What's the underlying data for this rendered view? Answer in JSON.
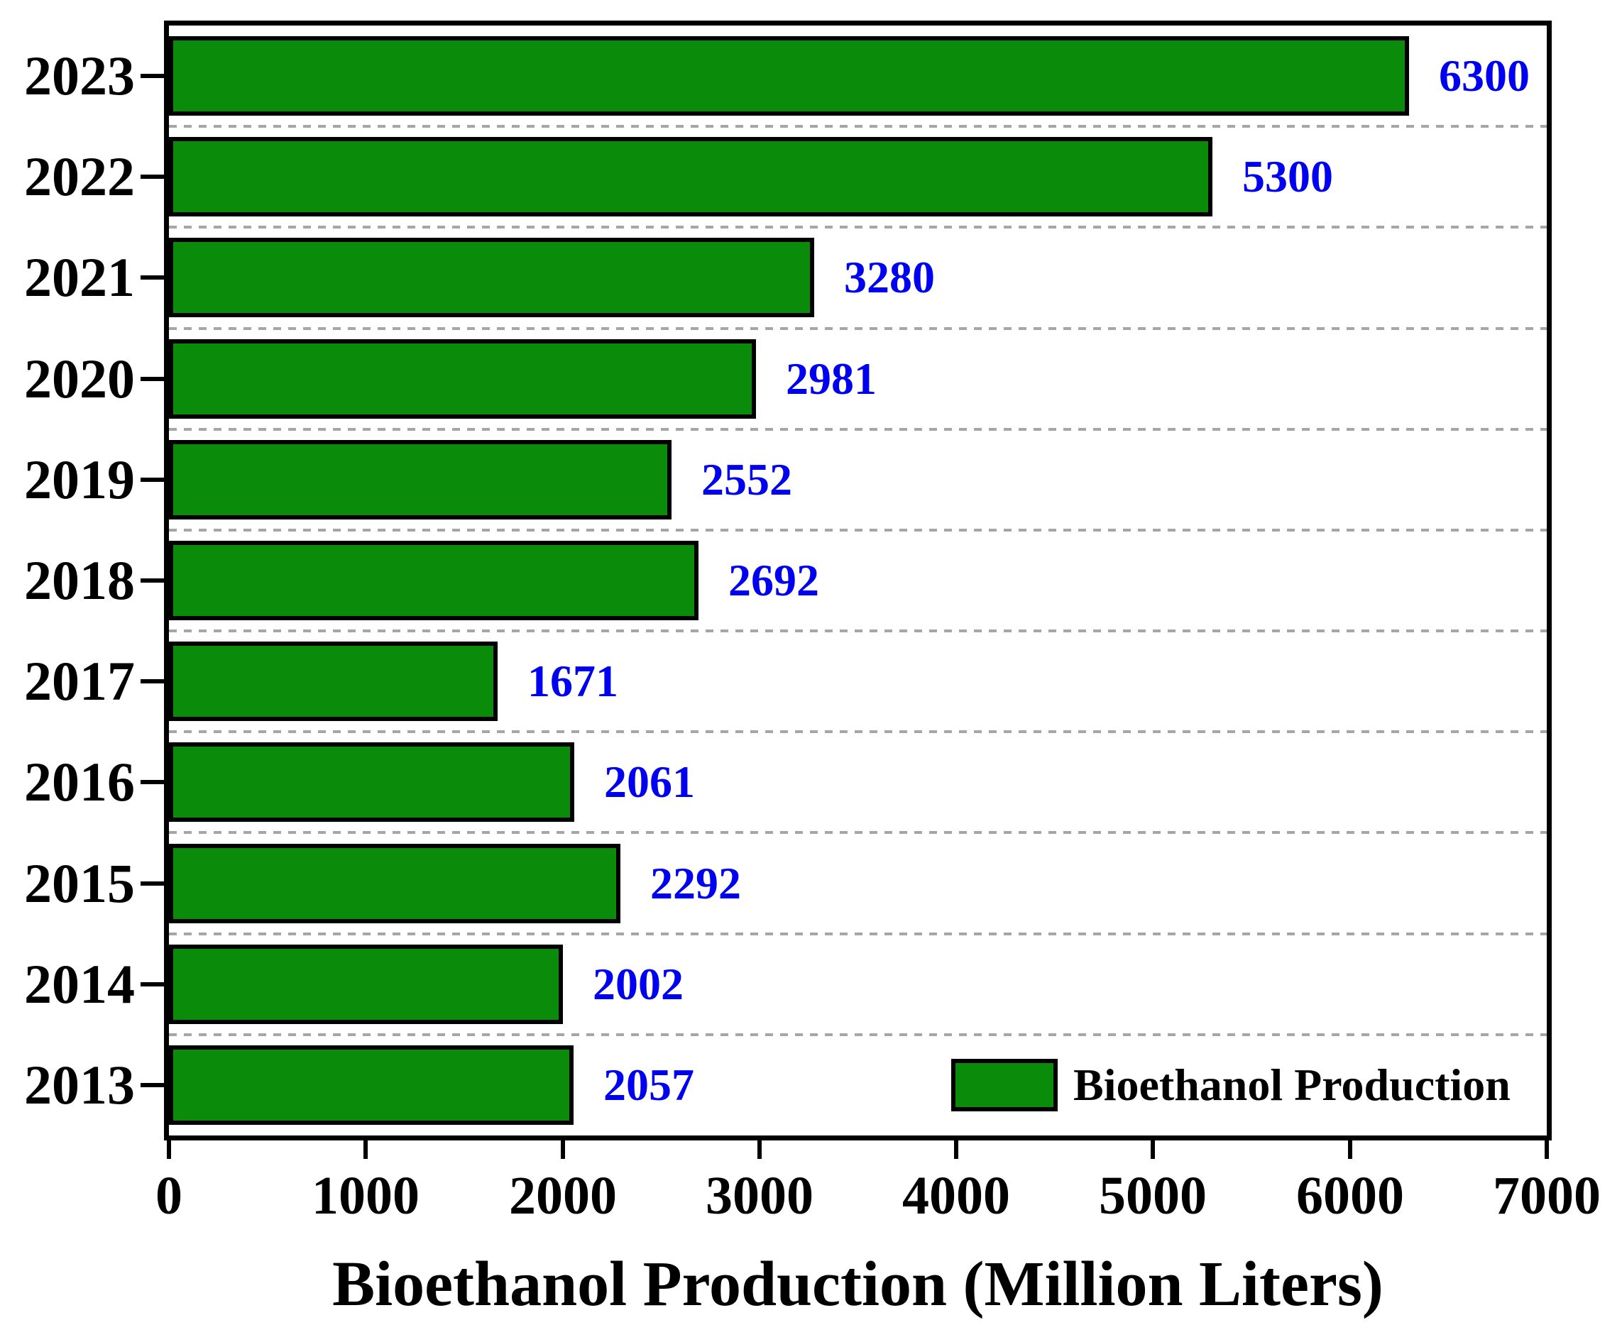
{
  "chart_data": {
    "type": "bar",
    "orientation": "horizontal",
    "title": "",
    "xlabel": "Bioethanol Production (Million Liters)",
    "ylabel": "",
    "categories": [
      "2023",
      "2022",
      "2021",
      "2020",
      "2019",
      "2018",
      "2017",
      "2016",
      "2015",
      "2014",
      "2013"
    ],
    "values": [
      6300,
      5300,
      3280,
      2981,
      2552,
      2692,
      1671,
      2061,
      2292,
      2002,
      2057
    ],
    "value_labels": [
      "6300",
      "5300",
      "3280",
      "2981",
      "2552",
      "2692",
      "1671",
      "2061",
      "2292",
      "2002",
      "2057"
    ],
    "series_name": "Bioethanol Production",
    "xlim": [
      0,
      7000
    ],
    "xticks": [
      0,
      1000,
      2000,
      3000,
      4000,
      5000,
      6000,
      7000
    ],
    "xtick_labels": [
      "0",
      "1000",
      "2000",
      "3000",
      "4000",
      "5000",
      "6000",
      "7000"
    ],
    "grid": "dashed horizontal lines between category slots",
    "legend": {
      "label": "Bioethanol Production",
      "position": "bottom-right inside plot",
      "swatch": "green-rectangle"
    },
    "colors": {
      "bar_fill": "#0a8c0a",
      "bar_border": "#000000",
      "value_label": "#0000f0",
      "axis_and_text": "#000000",
      "gridline": "#a6a6a6",
      "background": "#ffffff"
    }
  }
}
